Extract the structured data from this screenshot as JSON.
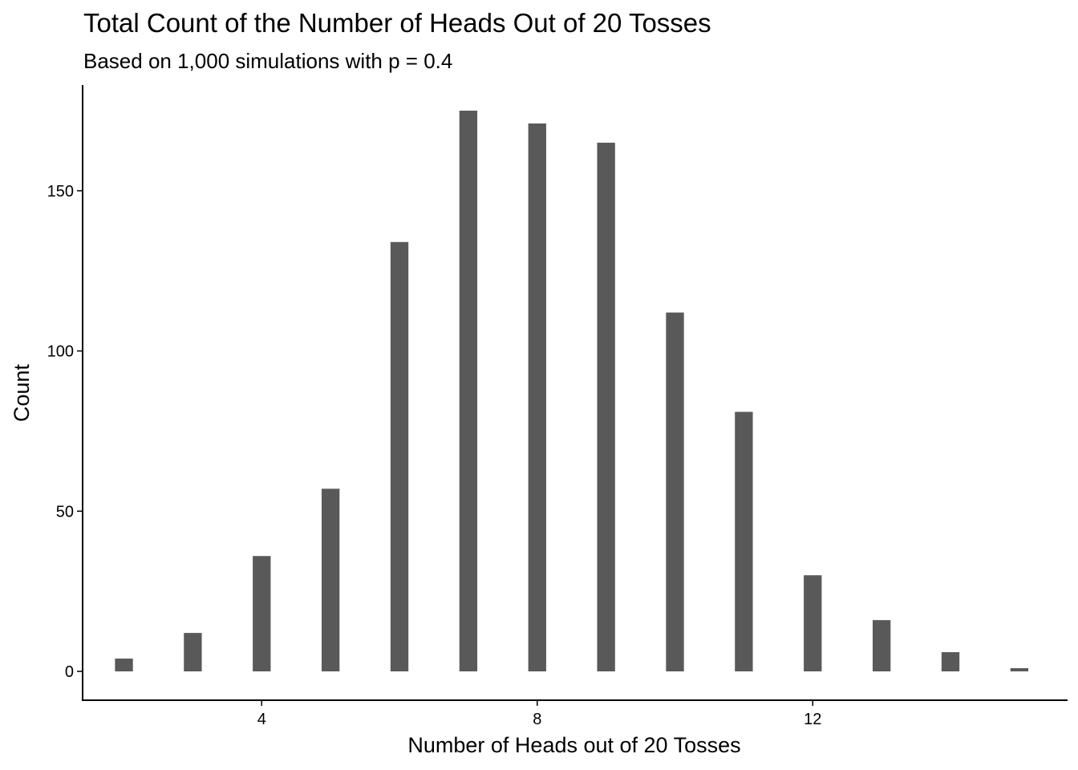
{
  "chart_data": {
    "type": "bar",
    "title": "Total Count of the Number of Heads Out of 20 Tosses",
    "subtitle": "Based on 1,000 simulations with p = 0.4",
    "xlabel": "Number of Heads out of 20 Tosses",
    "ylabel": "Count",
    "x": [
      2,
      3,
      4,
      5,
      6,
      7,
      8,
      9,
      10,
      11,
      12,
      13,
      14,
      15
    ],
    "values": [
      4,
      12,
      36,
      57,
      134,
      175,
      171,
      165,
      112,
      81,
      30,
      16,
      6,
      1
    ],
    "xlim": [
      1.4,
      15.7
    ],
    "ylim": [
      -9,
      183
    ],
    "xticks": [
      4,
      8,
      12
    ],
    "yticks": [
      0,
      50,
      100,
      150
    ],
    "grid": false,
    "bar_color": "#595959"
  }
}
